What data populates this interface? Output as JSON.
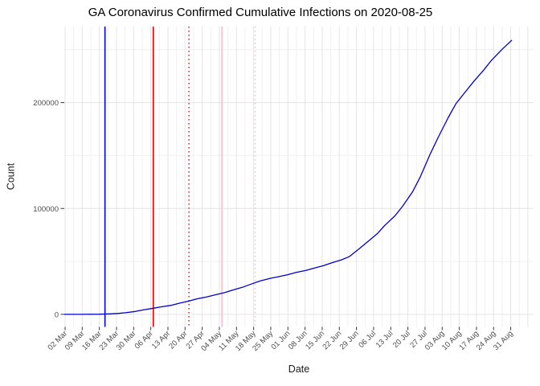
{
  "chart_data": {
    "type": "line",
    "title": "GA Coronavirus Confirmed Cumulative Infections on 2020-08-25",
    "xlabel": "Date",
    "ylabel": "Count",
    "x_tick_labels": [
      "02 Mar",
      "09 Mar",
      "16 Mar",
      "23 Mar",
      "30 Mar",
      "06 Apr",
      "13 Apr",
      "20 Apr",
      "27 Apr",
      "04 May",
      "11 May",
      "18 May",
      "25 May",
      "01 Jun",
      "08 Jun",
      "15 Jun",
      "22 Jun",
      "29 Jun",
      "06 Jul",
      "13 Jul",
      "20 Jul",
      "27 Jul",
      "03 Aug",
      "10 Aug",
      "17 Aug",
      "24 Aug",
      "31 Aug"
    ],
    "y_tick_labels": [
      "0",
      "100000",
      "200000"
    ],
    "y_tick_values": [
      0,
      100000,
      200000
    ],
    "y_minor_values": [
      50000,
      150000,
      250000
    ],
    "ylim": [
      -12000,
      272000
    ],
    "grid": true,
    "legend": "none",
    "line_color": "#0000C8",
    "series": [
      {
        "name": "cumulative-confirmed-infections",
        "points": [
          [
            "2020-03-02",
            2
          ],
          [
            "2020-03-09",
            20
          ],
          [
            "2020-03-16",
            150
          ],
          [
            "2020-03-20",
            420
          ],
          [
            "2020-03-23",
            800
          ],
          [
            "2020-03-26",
            1500
          ],
          [
            "2020-03-30",
            2700
          ],
          [
            "2020-04-02",
            4200
          ],
          [
            "2020-04-06",
            5800
          ],
          [
            "2020-04-09",
            7100
          ],
          [
            "2020-04-13",
            8500
          ],
          [
            "2020-04-16",
            10400
          ],
          [
            "2020-04-20",
            12500
          ],
          [
            "2020-04-23",
            14500
          ],
          [
            "2020-04-27",
            16500
          ],
          [
            "2020-05-01",
            18800
          ],
          [
            "2020-05-04",
            20500
          ],
          [
            "2020-05-08",
            23500
          ],
          [
            "2020-05-11",
            25500
          ],
          [
            "2020-05-15",
            29000
          ],
          [
            "2020-05-18",
            31500
          ],
          [
            "2020-05-22",
            34000
          ],
          [
            "2020-05-25",
            35500
          ],
          [
            "2020-05-29",
            37500
          ],
          [
            "2020-06-01",
            39500
          ],
          [
            "2020-06-05",
            41500
          ],
          [
            "2020-06-08",
            43500
          ],
          [
            "2020-06-12",
            46000
          ],
          [
            "2020-06-15",
            48500
          ],
          [
            "2020-06-19",
            51500
          ],
          [
            "2020-06-22",
            54500
          ],
          [
            "2020-06-26",
            62000
          ],
          [
            "2020-06-29",
            68000
          ],
          [
            "2020-07-03",
            76000
          ],
          [
            "2020-07-06",
            84000
          ],
          [
            "2020-07-10",
            93000
          ],
          [
            "2020-07-13",
            102000
          ],
          [
            "2020-07-17",
            116000
          ],
          [
            "2020-07-20",
            130000
          ],
          [
            "2020-07-24",
            152000
          ],
          [
            "2020-07-27",
            167000
          ],
          [
            "2020-07-31",
            186000
          ],
          [
            "2020-08-03",
            199000
          ],
          [
            "2020-08-07",
            211000
          ],
          [
            "2020-08-10",
            220000
          ],
          [
            "2020-08-14",
            231000
          ],
          [
            "2020-08-17",
            240000
          ],
          [
            "2020-08-21",
            250000
          ],
          [
            "2020-08-25",
            259000
          ]
        ]
      }
    ],
    "vlines": [
      {
        "name": "blue-solid-event-line",
        "date": "2020-03-18",
        "color": "#0202E0",
        "style": "solid",
        "width": 1.6
      },
      {
        "name": "red-solid-event-line",
        "date": "2020-04-06",
        "color": "#E60000",
        "style": "solid",
        "width": 1.6
      },
      {
        "name": "red-dotted-event-line",
        "date": "2020-04-20",
        "color": "#E60000",
        "style": "dotted",
        "width": 1.3
      },
      {
        "name": "pink-solid-event-line",
        "date": "2020-05-03",
        "color": "#FFC0CB",
        "style": "solid",
        "width": 1.8
      },
      {
        "name": "pink-dotted-event-line",
        "date": "2020-05-16",
        "color": "#FFC0CB",
        "style": "dotted",
        "width": 1.4
      }
    ],
    "colors": {
      "grid_major": "#e4e4e4",
      "grid_minor": "#f0f0f0",
      "tick_mark": "#333333",
      "tick_label": "#4d4d4d",
      "background": "#ffffff"
    }
  }
}
